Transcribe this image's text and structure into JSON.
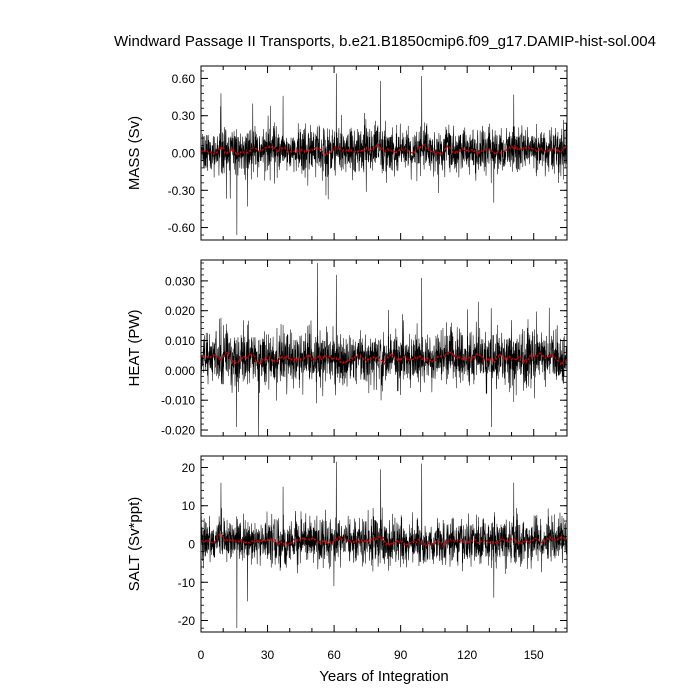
{
  "title": "Windward Passage II Transports, b.e21.B1850cmip6.f09_g17.DAMIP-hist-sol.004",
  "xlabel": "Years of Integration",
  "colors": {
    "series": "#000000",
    "smoothed": "#e00000"
  },
  "chart_data": [
    {
      "type": "line",
      "ylabel": "MASS (Sv)",
      "xlim": [
        0,
        165
      ],
      "ylim": [
        -0.7,
        0.7
      ],
      "yticks": [
        -0.6,
        -0.3,
        0.0,
        0.3,
        0.6
      ],
      "ytick_labels": [
        "-0.60",
        "-0.30",
        "0.00",
        "0.30",
        "0.60"
      ],
      "xticks": [
        0,
        30,
        60,
        90,
        120,
        150
      ],
      "xtick_labels": [
        "0",
        "30",
        "60",
        "90",
        "120",
        "150"
      ],
      "mean": 0.02,
      "noise": 0.09,
      "smooth_amp": 0.03,
      "spikes": [
        [
          16.2,
          -0.66
        ],
        [
          61.0,
          0.64
        ],
        [
          81.0,
          0.58
        ],
        [
          99.5,
          0.62
        ],
        [
          9.0,
          0.48
        ],
        [
          37.0,
          0.46
        ],
        [
          132.0,
          -0.4
        ],
        [
          21.0,
          -0.43
        ],
        [
          141.0,
          0.47
        ]
      ]
    },
    {
      "type": "line",
      "ylabel": "HEAT (PW)",
      "xlim": [
        0,
        165
      ],
      "ylim": [
        -0.022,
        0.037
      ],
      "yticks": [
        -0.02,
        -0.01,
        0.0,
        0.01,
        0.02,
        0.03
      ],
      "ytick_labels": [
        "-0.020",
        "-0.010",
        "0.000",
        "0.010",
        "0.020",
        "0.030"
      ],
      "xticks": [
        0,
        30,
        60,
        90,
        120,
        150
      ],
      "xtick_labels": [
        "0",
        "30",
        "60",
        "90",
        "120",
        "150"
      ],
      "mean": 0.004,
      "noise": 0.0045,
      "smooth_amp": 0.0018,
      "spikes": [
        [
          52.5,
          0.036
        ],
        [
          16.0,
          -0.019
        ],
        [
          26.0,
          -0.022
        ],
        [
          61.0,
          0.032
        ],
        [
          99.5,
          0.031
        ],
        [
          131.0,
          -0.019
        ],
        [
          125.0,
          0.023
        ],
        [
          157.0,
          0.021
        ]
      ]
    },
    {
      "type": "line",
      "ylabel": "SALT (Sv*ppt)",
      "xlim": [
        0,
        165
      ],
      "ylim": [
        -23,
        23
      ],
      "yticks": [
        -20,
        -10,
        0,
        10,
        20
      ],
      "ytick_labels": [
        "-20",
        "-10",
        "0",
        "10",
        "20"
      ],
      "xticks": [
        0,
        30,
        60,
        90,
        120,
        150
      ],
      "xtick_labels": [
        "0",
        "30",
        "60",
        "90",
        "120",
        "150"
      ],
      "mean": 0.8,
      "noise": 3.0,
      "smooth_amp": 1.1,
      "spikes": [
        [
          16.2,
          -22
        ],
        [
          61.0,
          21.5
        ],
        [
          81.0,
          19.5
        ],
        [
          99.5,
          21
        ],
        [
          9.0,
          16
        ],
        [
          37.0,
          15
        ],
        [
          132.0,
          -14
        ],
        [
          21.0,
          -15
        ],
        [
          141.0,
          16
        ]
      ]
    }
  ]
}
